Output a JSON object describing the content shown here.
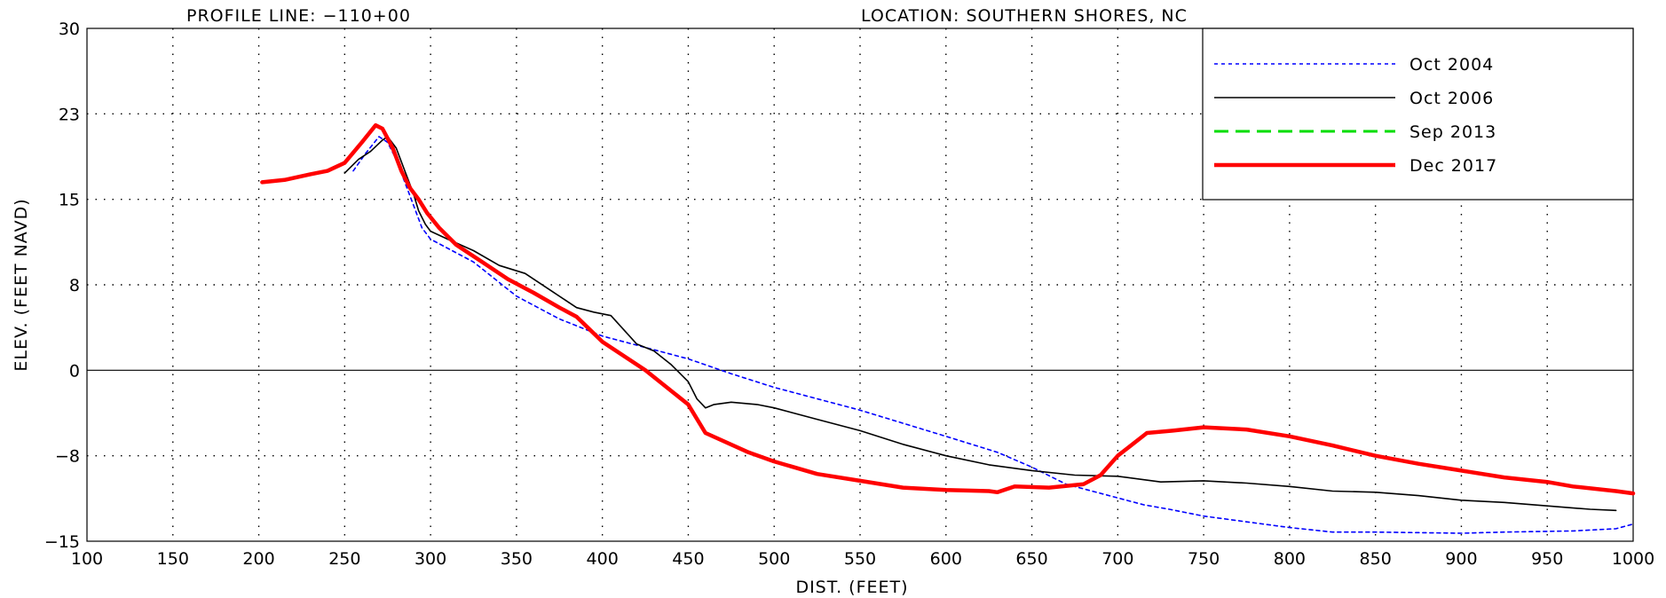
{
  "header": {
    "profile_line": "PROFILE LINE: −110+00",
    "location": "LOCATION: SOUTHERN SHORES, NC"
  },
  "chart_data": {
    "type": "line",
    "xlabel": "DIST. (FEET)",
    "ylabel": "ELEV. (FEET NAVD)",
    "xlim": [
      100,
      1000
    ],
    "ylim": [
      -15,
      30
    ],
    "xticks": [
      100,
      150,
      200,
      250,
      300,
      350,
      400,
      450,
      500,
      550,
      600,
      650,
      700,
      750,
      800,
      850,
      900,
      950,
      1000
    ],
    "xtick_labels": [
      "100",
      "150",
      "200",
      "250",
      "300",
      "350",
      "400",
      "450",
      "500",
      "550",
      "600",
      "650",
      "700",
      "750",
      "800",
      "850",
      "900",
      "950",
      "1000"
    ],
    "yticks": [
      -15,
      -7.5,
      0,
      7.5,
      15,
      22.5,
      30
    ],
    "ytick_labels": [
      "−15",
      "−8",
      "0",
      "8",
      "15",
      "23",
      "30"
    ],
    "grid": true,
    "grid_style": "dotted",
    "zero_line": true,
    "legend_position": "top-right",
    "series": [
      {
        "name": "Oct 2004",
        "color": "#0000ff",
        "dash": "dotted",
        "points": [
          [
            255,
            17.5
          ],
          [
            262,
            19.0
          ],
          [
            270,
            20.5
          ],
          [
            275,
            20.0
          ],
          [
            280,
            18.5
          ],
          [
            285,
            16.5
          ],
          [
            290,
            14.5
          ],
          [
            295,
            12.5
          ],
          [
            300,
            11.5
          ],
          [
            325,
            9.5
          ],
          [
            350,
            6.5
          ],
          [
            375,
            4.5
          ],
          [
            400,
            3.0
          ],
          [
            425,
            2.0
          ],
          [
            450,
            1.0
          ],
          [
            475,
            -0.3
          ],
          [
            500,
            -1.5
          ],
          [
            550,
            -3.5
          ],
          [
            600,
            -5.8
          ],
          [
            630,
            -7.2
          ],
          [
            650,
            -8.5
          ],
          [
            670,
            -10.0
          ],
          [
            700,
            -11.2
          ],
          [
            715,
            -11.8
          ],
          [
            730,
            -12.2
          ],
          [
            750,
            -12.8
          ],
          [
            800,
            -13.8
          ],
          [
            825,
            -14.2
          ],
          [
            850,
            -14.2
          ],
          [
            900,
            -14.3
          ],
          [
            925,
            -14.2
          ],
          [
            965,
            -14.1
          ],
          [
            990,
            -13.9
          ],
          [
            1000,
            -13.5
          ]
        ]
      },
      {
        "name": "Oct 2006",
        "color": "#000000",
        "dash": "solid",
        "points": [
          [
            250,
            17.3
          ],
          [
            258,
            18.5
          ],
          [
            265,
            19.2
          ],
          [
            272,
            20.2
          ],
          [
            275,
            20.5
          ],
          [
            280,
            19.5
          ],
          [
            285,
            17.5
          ],
          [
            290,
            15.5
          ],
          [
            293,
            14.0
          ],
          [
            297,
            12.8
          ],
          [
            300,
            12.2
          ],
          [
            310,
            11.5
          ],
          [
            325,
            10.5
          ],
          [
            340,
            9.2
          ],
          [
            355,
            8.5
          ],
          [
            370,
            7.0
          ],
          [
            385,
            5.5
          ],
          [
            395,
            5.1
          ],
          [
            405,
            4.8
          ],
          [
            420,
            2.3
          ],
          [
            430,
            1.7
          ],
          [
            440,
            0.5
          ],
          [
            450,
            -1.0
          ],
          [
            455,
            -2.5
          ],
          [
            460,
            -3.3
          ],
          [
            465,
            -3.0
          ],
          [
            475,
            -2.8
          ],
          [
            490,
            -3.0
          ],
          [
            500,
            -3.3
          ],
          [
            525,
            -4.3
          ],
          [
            550,
            -5.3
          ],
          [
            575,
            -6.5
          ],
          [
            600,
            -7.5
          ],
          [
            625,
            -8.3
          ],
          [
            650,
            -8.8
          ],
          [
            675,
            -9.2
          ],
          [
            700,
            -9.3
          ],
          [
            725,
            -9.8
          ],
          [
            750,
            -9.7
          ],
          [
            775,
            -9.9
          ],
          [
            800,
            -10.2
          ],
          [
            825,
            -10.6
          ],
          [
            850,
            -10.7
          ],
          [
            875,
            -11.0
          ],
          [
            900,
            -11.4
          ],
          [
            925,
            -11.6
          ],
          [
            950,
            -11.9
          ],
          [
            975,
            -12.2
          ],
          [
            990,
            -12.3
          ]
        ]
      },
      {
        "name": "Sep 2013",
        "color": "#00dd00",
        "dash": "dashed",
        "points": []
      },
      {
        "name": "Dec 2017",
        "color": "#ff0000",
        "dash": "solid",
        "points": [
          [
            202,
            16.5
          ],
          [
            215,
            16.7
          ],
          [
            230,
            17.2
          ],
          [
            240,
            17.5
          ],
          [
            250,
            18.2
          ],
          [
            260,
            20.0
          ],
          [
            268,
            21.5
          ],
          [
            272,
            21.2
          ],
          [
            278,
            19.5
          ],
          [
            283,
            17.5
          ],
          [
            288,
            16.0
          ],
          [
            293,
            15.0
          ],
          [
            298,
            13.8
          ],
          [
            305,
            12.5
          ],
          [
            315,
            11.0
          ],
          [
            330,
            9.5
          ],
          [
            345,
            8.0
          ],
          [
            360,
            6.8
          ],
          [
            375,
            5.5
          ],
          [
            385,
            4.7
          ],
          [
            400,
            2.5
          ],
          [
            425,
            0.0
          ],
          [
            450,
            -3.0
          ],
          [
            460,
            -5.5
          ],
          [
            485,
            -7.2
          ],
          [
            500,
            -8.0
          ],
          [
            525,
            -9.1
          ],
          [
            550,
            -9.7
          ],
          [
            575,
            -10.3
          ],
          [
            600,
            -10.5
          ],
          [
            625,
            -10.6
          ],
          [
            630,
            -10.7
          ],
          [
            640,
            -10.2
          ],
          [
            660,
            -10.3
          ],
          [
            680,
            -10.0
          ],
          [
            690,
            -9.2
          ],
          [
            700,
            -7.5
          ],
          [
            717,
            -5.5
          ],
          [
            732,
            -5.3
          ],
          [
            750,
            -5.0
          ],
          [
            775,
            -5.2
          ],
          [
            800,
            -5.8
          ],
          [
            825,
            -6.6
          ],
          [
            850,
            -7.5
          ],
          [
            875,
            -8.2
          ],
          [
            900,
            -8.8
          ],
          [
            925,
            -9.4
          ],
          [
            950,
            -9.8
          ],
          [
            965,
            -10.2
          ],
          [
            990,
            -10.6
          ],
          [
            1000,
            -10.8
          ]
        ]
      }
    ]
  }
}
